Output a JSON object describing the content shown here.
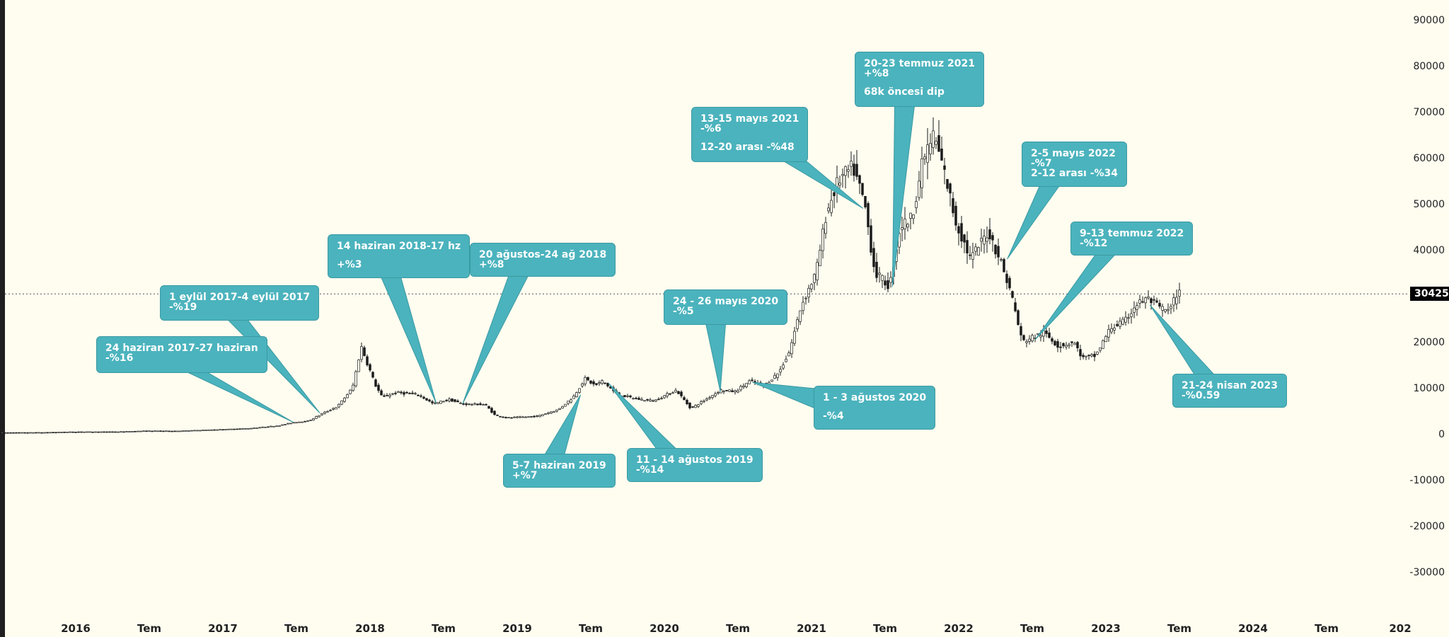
{
  "chart_data": {
    "type": "candlestick",
    "title": "",
    "xlabel": "",
    "ylabel": "",
    "ylim": [
      -35000,
      95000
    ],
    "y_ticks": [
      90000,
      80000,
      70000,
      60000,
      50000,
      40000,
      30000,
      20000,
      10000,
      0,
      -10000,
      -20000,
      -30000
    ],
    "x_ticks": [
      {
        "label": "2016",
        "t": 2016.0
      },
      {
        "label": "Tem",
        "t": 2016.5
      },
      {
        "label": "2017",
        "t": 2017.0
      },
      {
        "label": "Tem",
        "t": 2017.5
      },
      {
        "label": "2018",
        "t": 2018.0
      },
      {
        "label": "Tem",
        "t": 2018.5
      },
      {
        "label": "2019",
        "t": 2019.0
      },
      {
        "label": "Tem",
        "t": 2019.5
      },
      {
        "label": "2020",
        "t": 2020.0
      },
      {
        "label": "Tem",
        "t": 2020.5
      },
      {
        "label": "2021",
        "t": 2021.0
      },
      {
        "label": "Tem",
        "t": 2021.5
      },
      {
        "label": "2022",
        "t": 2022.0
      },
      {
        "label": "Tem",
        "t": 2022.5
      },
      {
        "label": "2023",
        "t": 2023.0
      },
      {
        "label": "Tem",
        "t": 2023.5
      },
      {
        "label": "2024",
        "t": 2024.0
      },
      {
        "label": "Tem",
        "t": 2024.5
      },
      {
        "label": "202",
        "t": 2025.0
      }
    ],
    "current_price": 30425,
    "price_series": [
      [
        2015.5,
        250
      ],
      [
        2015.8,
        300
      ],
      [
        2016.0,
        430
      ],
      [
        2016.3,
        450
      ],
      [
        2016.5,
        650
      ],
      [
        2016.7,
        620
      ],
      [
        2017.0,
        950
      ],
      [
        2017.2,
        1200
      ],
      [
        2017.4,
        1800
      ],
      [
        2017.5,
        2500
      ],
      [
        2017.6,
        2800
      ],
      [
        2017.7,
        4500
      ],
      [
        2017.8,
        6000
      ],
      [
        2017.9,
        10000
      ],
      [
        2017.96,
        19000
      ],
      [
        2018.05,
        11000
      ],
      [
        2018.1,
        8000
      ],
      [
        2018.2,
        9000
      ],
      [
        2018.35,
        8500
      ],
      [
        2018.45,
        6500
      ],
      [
        2018.55,
        7500
      ],
      [
        2018.65,
        6500
      ],
      [
        2018.8,
        6400
      ],
      [
        2018.87,
        4000
      ],
      [
        2018.95,
        3500
      ],
      [
        2019.15,
        3800
      ],
      [
        2019.3,
        5300
      ],
      [
        2019.4,
        8000
      ],
      [
        2019.48,
        12000
      ],
      [
        2019.55,
        10500
      ],
      [
        2019.6,
        11500
      ],
      [
        2019.7,
        8500
      ],
      [
        2019.85,
        7500
      ],
      [
        2019.95,
        7200
      ],
      [
        2020.1,
        9500
      ],
      [
        2020.2,
        5500
      ],
      [
        2020.3,
        7500
      ],
      [
        2020.4,
        9500
      ],
      [
        2020.5,
        9200
      ],
      [
        2020.6,
        11500
      ],
      [
        2020.7,
        10500
      ],
      [
        2020.8,
        13500
      ],
      [
        2020.87,
        18000
      ],
      [
        2020.95,
        28000
      ],
      [
        2021.05,
        35000
      ],
      [
        2021.12,
        48000
      ],
      [
        2021.2,
        55000
      ],
      [
        2021.3,
        58000
      ],
      [
        2021.38,
        50000
      ],
      [
        2021.45,
        35000
      ],
      [
        2021.55,
        32000
      ],
      [
        2021.62,
        45000
      ],
      [
        2021.7,
        47000
      ],
      [
        2021.78,
        60000
      ],
      [
        2021.85,
        65000
      ],
      [
        2021.92,
        57000
      ],
      [
        2022.0,
        46000
      ],
      [
        2022.1,
        38000
      ],
      [
        2022.22,
        44000
      ],
      [
        2022.3,
        38000
      ],
      [
        2022.38,
        30000
      ],
      [
        2022.45,
        20000
      ],
      [
        2022.52,
        21000
      ],
      [
        2022.6,
        22000
      ],
      [
        2022.7,
        19000
      ],
      [
        2022.8,
        20000
      ],
      [
        2022.86,
        16500
      ],
      [
        2022.95,
        17000
      ],
      [
        2023.05,
        23000
      ],
      [
        2023.15,
        24500
      ],
      [
        2023.22,
        28000
      ],
      [
        2023.3,
        29500
      ],
      [
        2023.38,
        27500
      ],
      [
        2023.45,
        26500
      ],
      [
        2023.5,
        30425
      ]
    ],
    "annotations": [
      {
        "lines": [
          "24 haziran 2017-27 haziran",
          "-%16"
        ],
        "target": [
          2017.48,
          2500
        ]
      },
      {
        "lines": [
          "1 eylül 2017-4 eylül 2017",
          "-%19"
        ],
        "target": [
          2017.66,
          4500
        ]
      },
      {
        "lines": [
          "14 haziran 2018-17 hz",
          "",
          "+%3"
        ],
        "target": [
          2018.45,
          6600
        ]
      },
      {
        "lines": [
          "20 ağustos-24 ağ 2018",
          "+%8"
        ],
        "target": [
          2018.63,
          6600
        ]
      },
      {
        "lines": [
          "5-7 haziran 2019",
          "+%7"
        ],
        "target": [
          2019.43,
          8500
        ]
      },
      {
        "lines": [
          "11 - 14 ağustos 2019",
          "-%14"
        ],
        "target": [
          2019.62,
          11000
        ]
      },
      {
        "lines": [
          "24 - 26 mayıs 2020",
          "-%5"
        ],
        "target": [
          2020.38,
          9200
        ]
      },
      {
        "lines": [
          "1 - 3 ağustos 2020",
          "",
          "-%4"
        ],
        "target": [
          2020.6,
          11200
        ]
      },
      {
        "lines": [
          "13-15 mayıs 2021",
          "-%6",
          "",
          "12-20 arası -%48"
        ],
        "target": [
          2021.35,
          49000
        ]
      },
      {
        "lines": [
          "20-23 temmuz 2021",
          "+%8",
          "",
          "68k öncesi dip"
        ],
        "target": [
          2021.55,
          32000
        ]
      },
      {
        "lines": [
          "2-5 mayıs 2022",
          "-%7",
          "2-12 arası -%34"
        ],
        "target": [
          2022.33,
          38000
        ]
      },
      {
        "lines": [
          "9-13 temmuz 2022",
          "-%12"
        ],
        "target": [
          2022.52,
          20500
        ]
      },
      {
        "lines": [
          "21-24 nisan 2023",
          "-%0.59"
        ],
        "target": [
          2023.3,
          28000
        ]
      }
    ]
  }
}
